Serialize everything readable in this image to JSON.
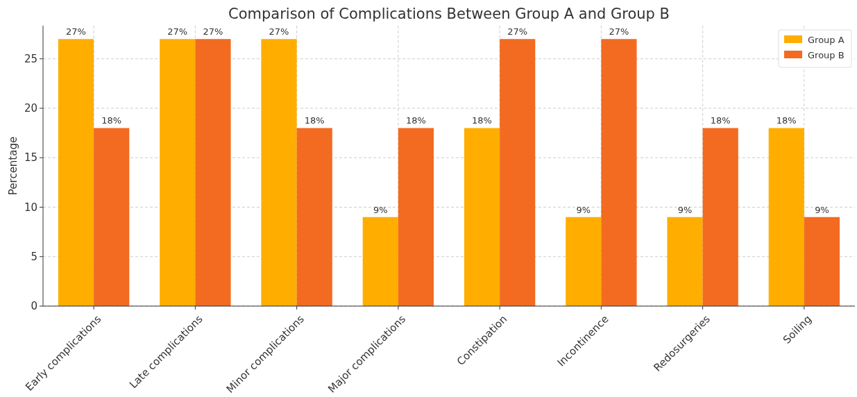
{
  "chart_data": {
    "type": "bar",
    "title": "Comparison of Complications Between Group A and Group B",
    "ylabel": "Percentage",
    "categories": [
      "Early complications",
      "Late complications",
      "Minor complications",
      "Major complications",
      "Constipation",
      "Incontinence",
      "Redosurgeries",
      "Soiling"
    ],
    "series": [
      {
        "name": "Group A",
        "color": "#ffae00",
        "values": [
          27,
          27,
          27,
          9,
          18,
          9,
          9,
          18
        ],
        "value_labels": [
          "27%",
          "27%",
          "27%",
          "9%",
          "18%",
          "9%",
          "9%",
          "18%"
        ]
      },
      {
        "name": "Group B",
        "color": "#f26b21",
        "values": [
          18,
          27,
          18,
          18,
          27,
          27,
          18,
          9
        ],
        "value_labels": [
          "18%",
          "27%",
          "18%",
          "18%",
          "27%",
          "27%",
          "18%",
          "9%"
        ]
      }
    ],
    "ylim": [
      0,
      28.35
    ],
    "yticks": [
      0,
      5,
      10,
      15,
      20,
      25
    ],
    "grid": true,
    "legend": "top right"
  }
}
